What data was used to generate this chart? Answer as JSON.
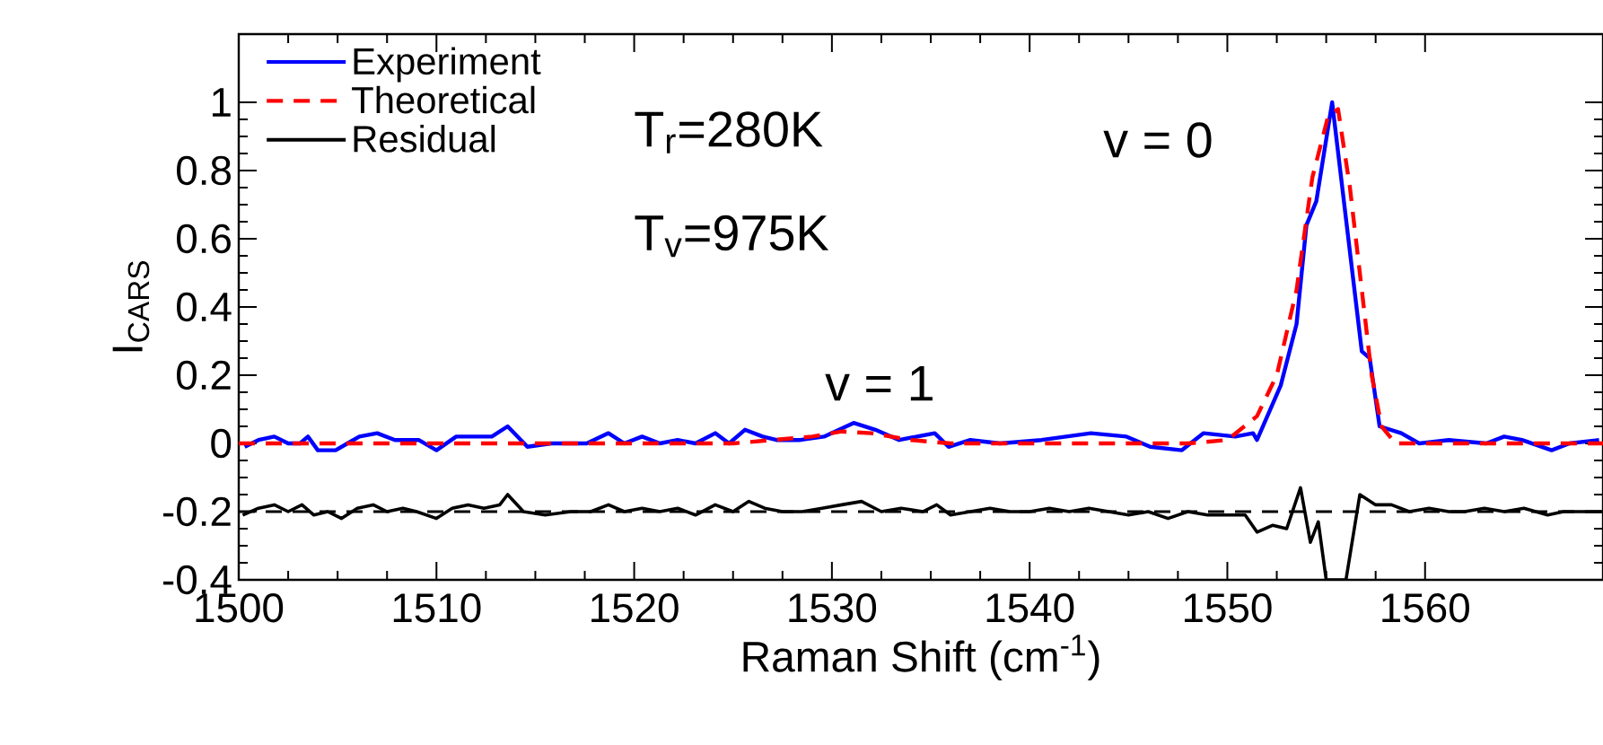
{
  "chart_data": {
    "type": "line",
    "xlabel": "Raman Shift (cm$^{-1}$)",
    "ylabel": "I$_{CARS}$",
    "xlim": [
      1500,
      1569
    ],
    "xticks": [
      1500,
      1510,
      1520,
      1530,
      1540,
      1550,
      1560
    ],
    "ylim": [
      -0.4,
      1.2
    ],
    "yticks": [
      -0.4,
      -0.2,
      0,
      0.2,
      0.4,
      0.6,
      0.8,
      1
    ],
    "legend": "top left",
    "grid": false,
    "marker": "none",
    "series": [
      {
        "name": "Experiment",
        "color": "#0000ff",
        "line_style": "solid",
        "x": [
          1500.3,
          1501,
          1501.8,
          1502.5,
          1503.1,
          1503.5,
          1504,
          1504.9,
          1505.5,
          1506.1,
          1507,
          1507.9,
          1509.1,
          1510,
          1511,
          1511.9,
          1512.8,
          1513.6,
          1514.6,
          1515.8,
          1517.6,
          1518.7,
          1519.5,
          1520.4,
          1521.3,
          1522.2,
          1523.1,
          1524.1,
          1524.8,
          1525.6,
          1526.5,
          1527.2,
          1528.4,
          1529.6,
          1531.1,
          1532.2,
          1533.4,
          1535.2,
          1535.9,
          1537,
          1538.5,
          1540.6,
          1543.1,
          1544.9,
          1546.1,
          1547.7,
          1548.8,
          1550.4,
          1551.3,
          1551.5,
          1552.7,
          1553.5,
          1554,
          1554.5,
          1555.3,
          1556.1,
          1556.8,
          1557.2,
          1557.7,
          1558.8,
          1559.7,
          1561.2,
          1563.1,
          1564,
          1564.9,
          1566.4,
          1567.3,
          1568.8
        ],
        "values": [
          -0.01,
          0.01,
          0.02,
          0.0,
          0.0,
          0.02,
          -0.02,
          -0.02,
          0.0,
          0.02,
          0.03,
          0.01,
          0.01,
          -0.02,
          0.02,
          0.02,
          0.02,
          0.05,
          -0.01,
          0.0,
          0.0,
          0.03,
          0.0,
          0.02,
          0.0,
          0.01,
          0.0,
          0.03,
          0.0,
          0.04,
          0.02,
          0.01,
          0.01,
          0.02,
          0.06,
          0.04,
          0.01,
          0.03,
          -0.01,
          0.01,
          0.0,
          0.01,
          0.03,
          0.02,
          -0.01,
          -0.02,
          0.03,
          0.02,
          0.03,
          0.01,
          0.17,
          0.35,
          0.64,
          0.71,
          1.0,
          0.61,
          0.27,
          0.25,
          0.05,
          0.03,
          0.0,
          0.01,
          0.0,
          0.02,
          0.01,
          -0.02,
          0.0,
          0.01
        ]
      },
      {
        "name": "Theoretical",
        "color": "#ff0000",
        "line_style": "dashed",
        "x": [
          1500,
          1525,
          1527,
          1529,
          1530.5,
          1532,
          1534,
          1536,
          1548,
          1550,
          1551.5,
          1552.5,
          1553.5,
          1554.3,
          1555.1,
          1555.6,
          1556.2,
          1556.8,
          1557.3,
          1557.8,
          1558.5,
          1569
        ],
        "values": [
          0,
          0,
          0.01,
          0.02,
          0.035,
          0.03,
          0.01,
          0,
          0,
          0.01,
          0.08,
          0.2,
          0.45,
          0.78,
          0.96,
          0.98,
          0.75,
          0.45,
          0.2,
          0.05,
          0,
          0
        ]
      },
      {
        "name": "Residual",
        "color": "#000000",
        "line_style": "solid",
        "x": [
          1500.2,
          1501,
          1501.8,
          1502.5,
          1503.2,
          1503.8,
          1504.5,
          1505.2,
          1506,
          1506.8,
          1507.5,
          1508.3,
          1509,
          1510,
          1510.8,
          1511.6,
          1512.4,
          1513.2,
          1513.6,
          1514.4,
          1515.5,
          1516.8,
          1517.8,
          1518.7,
          1519.5,
          1520.4,
          1521.3,
          1522.2,
          1523.1,
          1524.1,
          1525,
          1525.8,
          1526.6,
          1527.5,
          1528.5,
          1529.5,
          1530.5,
          1531.5,
          1532.5,
          1533.5,
          1534.6,
          1535.3,
          1536,
          1537,
          1538,
          1539,
          1540,
          1541,
          1542,
          1543,
          1544,
          1545,
          1546,
          1547,
          1548,
          1549,
          1550,
          1550.9,
          1551.5,
          1552.3,
          1553,
          1553.7,
          1554.2,
          1554.6,
          1555,
          1556,
          1556.7,
          1557.5,
          1558.3,
          1559.2,
          1560.2,
          1561.2,
          1562,
          1563,
          1564,
          1565,
          1566.2,
          1567,
          1568,
          1569
        ],
        "values": [
          -0.21,
          -0.19,
          -0.18,
          -0.2,
          -0.18,
          -0.21,
          -0.2,
          -0.22,
          -0.19,
          -0.18,
          -0.2,
          -0.19,
          -0.2,
          -0.22,
          -0.19,
          -0.18,
          -0.19,
          -0.18,
          -0.15,
          -0.2,
          -0.21,
          -0.2,
          -0.2,
          -0.18,
          -0.2,
          -0.19,
          -0.2,
          -0.19,
          -0.21,
          -0.18,
          -0.2,
          -0.17,
          -0.19,
          -0.2,
          -0.2,
          -0.19,
          -0.18,
          -0.17,
          -0.2,
          -0.19,
          -0.2,
          -0.18,
          -0.21,
          -0.2,
          -0.19,
          -0.2,
          -0.2,
          -0.19,
          -0.2,
          -0.19,
          -0.2,
          -0.21,
          -0.2,
          -0.22,
          -0.2,
          -0.21,
          -0.21,
          -0.21,
          -0.26,
          -0.24,
          -0.25,
          -0.13,
          -0.29,
          -0.23,
          -0.4,
          -0.4,
          -0.15,
          -0.18,
          -0.18,
          -0.2,
          -0.19,
          -0.2,
          -0.2,
          -0.19,
          -0.2,
          -0.19,
          -0.21,
          -0.2,
          -0.2,
          -0.2
        ]
      }
    ],
    "ref_lines": [
      {
        "axis": "y",
        "value": -0.2,
        "color": "#000000",
        "line_style": "dashed"
      }
    ],
    "annotations": [
      "T$_{r}$=280K",
      "T$_{v}$=975K",
      "v = 0",
      "v = 1"
    ]
  }
}
